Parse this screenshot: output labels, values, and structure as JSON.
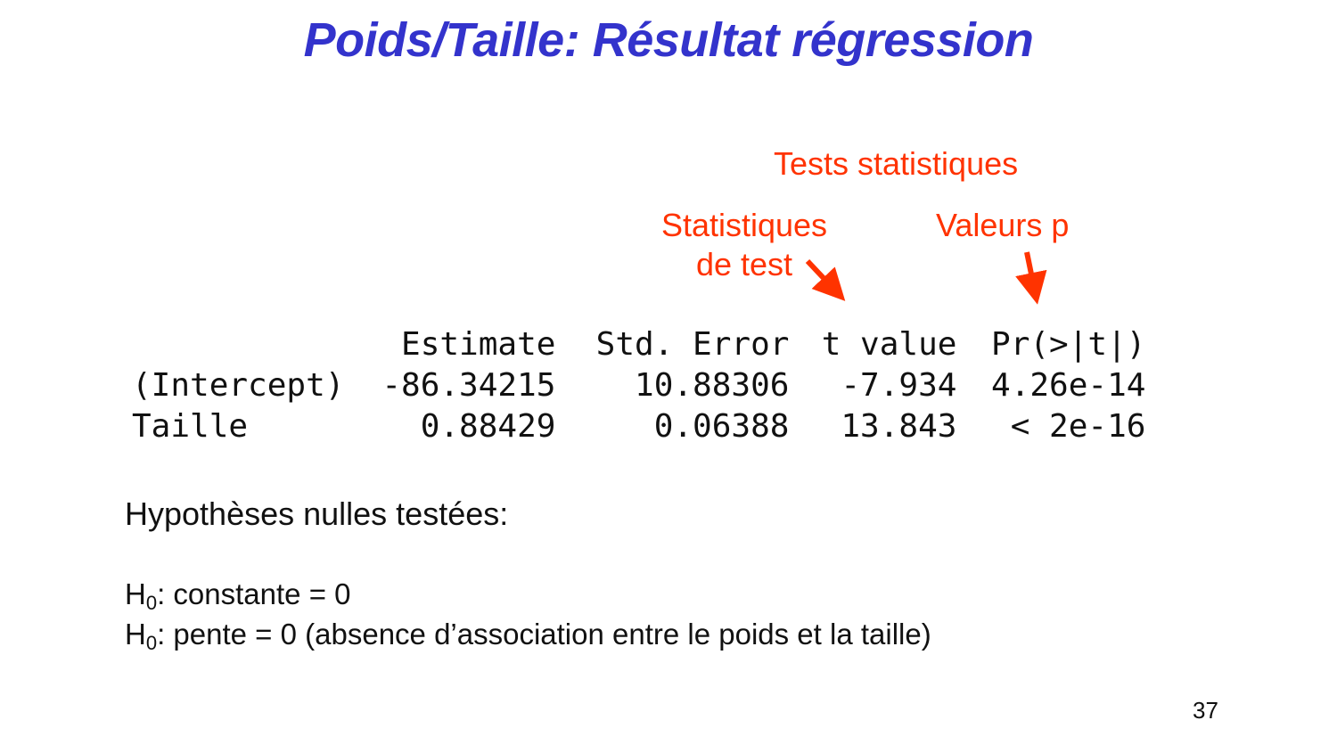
{
  "title": "Poids/Taille: Résultat régression",
  "annotations": {
    "tests": "Tests statistiques",
    "stat_line1": "Statistiques",
    "stat_line2": "de test",
    "pvalues": "Valeurs p",
    "arrow_color": "#ff3300"
  },
  "table": {
    "headers": [
      "",
      "Estimate",
      "Std. Error",
      "t value",
      "Pr(>|t|)"
    ],
    "rows": [
      {
        "name": "(Intercept)",
        "estimate": "-86.34215",
        "std_error": "10.88306",
        "t_value": "-7.934",
        "p_value": "4.26e-14"
      },
      {
        "name": "Taille",
        "estimate": "0.88429",
        "std_error": "0.06388",
        "t_value": "13.843",
        "p_value": "< 2e-16"
      }
    ]
  },
  "hypotheses": {
    "heading": "Hypothèses nulles testées:",
    "h_letter": "H",
    "h_sub": "0",
    "line1": ": constante = 0",
    "line2": ": pente = 0 (absence d’association entre le poids et la taille)"
  },
  "page_number": "37",
  "colors": {
    "title": "#3333cc",
    "annotation": "#ff3300",
    "text": "#111111"
  }
}
